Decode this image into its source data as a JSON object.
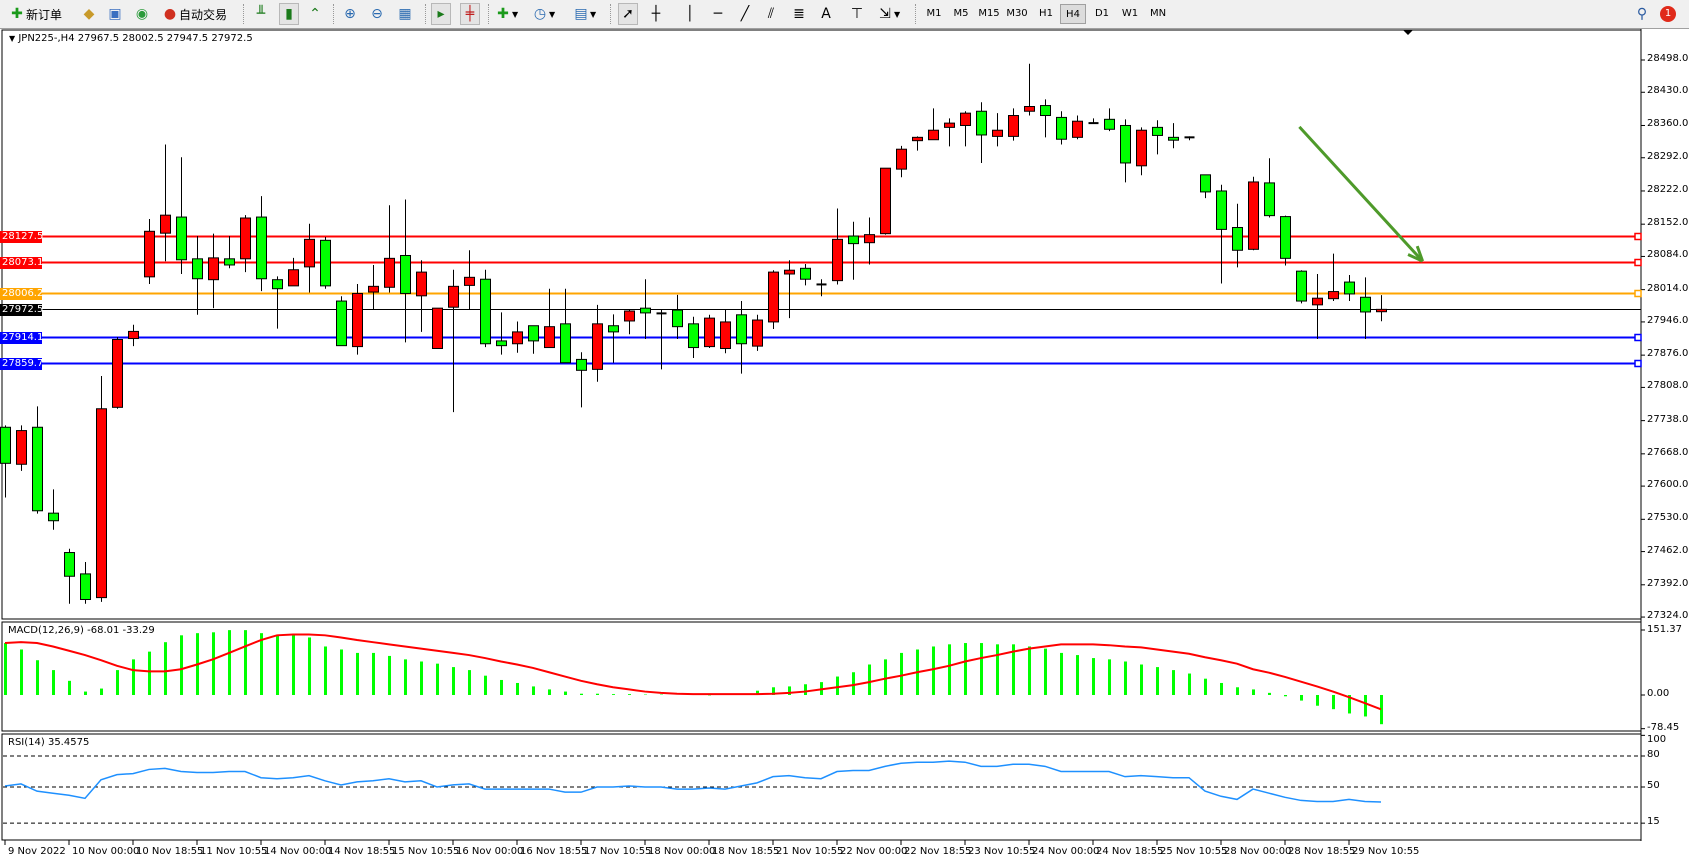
{
  "toolbar": {
    "new_order_label": "新订单",
    "auto_trade_label": "自动交易",
    "timeframes": [
      "M1",
      "M5",
      "M15",
      "M30",
      "H1",
      "H4",
      "D1",
      "W1",
      "MN"
    ],
    "active_timeframe": "H4",
    "notification_count": "1"
  },
  "chart": {
    "header": "JPN225-,H4  27967.5 28002.5 27947.5 27972.5",
    "symbol": "JPN225-",
    "timeframe": "H4",
    "price_axis": [
      "28498.0",
      "28430.0",
      "28360.0",
      "28292.0",
      "28222.0",
      "28152.0",
      "28084.0",
      "28014.0",
      "27946.0",
      "27876.0",
      "27808.0",
      "27738.0",
      "27668.0",
      "27600.0",
      "27530.0",
      "27462.0",
      "27392.0",
      "27324.0"
    ],
    "time_axis": [
      "9 Nov 2022",
      "10 Nov 00:00",
      "10 Nov 18:55",
      "11 Nov 10:55",
      "14 Nov 00:00",
      "14 Nov 18:55",
      "15 Nov 10:55",
      "16 Nov 00:00",
      "16 Nov 18:55",
      "17 Nov 10:55",
      "18 Nov 00:00",
      "18 Nov 18:55",
      "21 Nov 10:55",
      "22 Nov 00:00",
      "22 Nov 18:55",
      "23 Nov 10:55",
      "24 Nov 00:00",
      "24 Nov 18:55",
      "25 Nov 10:55",
      "28 Nov 00:00",
      "28 Nov 18:55",
      "29 Nov 10:55"
    ],
    "levels": [
      {
        "price": 28127.5,
        "label": "28127.5",
        "color": "#ff0000"
      },
      {
        "price": 28073.1,
        "label": "28073.1",
        "color": "#ff0000"
      },
      {
        "price": 28006.2,
        "label": "28006.2",
        "color": "#ffa500"
      },
      {
        "price": 27972.5,
        "label": "27972.5",
        "color": "#000000"
      },
      {
        "price": 27914.1,
        "label": "27914.1",
        "color": "#0000ff"
      },
      {
        "price": 27859.7,
        "label": "27859.7",
        "color": "#0000ff"
      }
    ],
    "colors": {
      "bull": "#ff0000",
      "bear": "#00ff00",
      "arrow": "#4e9a2a"
    },
    "arrow": {
      "from": {
        "bar": 80.9,
        "price": 28357
      },
      "to": {
        "bar": 88.6,
        "price": 28074
      }
    },
    "price_range": [
      27324,
      28498
    ]
  },
  "chart_data": {
    "type": "candlestick",
    "ohlc": [
      [
        27724,
        27728,
        27576,
        27648
      ],
      [
        27646,
        27728,
        27632,
        27717
      ],
      [
        27724,
        27768,
        27542,
        27548
      ],
      [
        27543,
        27593,
        27508,
        27527
      ],
      [
        27460,
        27468,
        27352,
        27410
      ],
      [
        27415,
        27440,
        27352,
        27361
      ],
      [
        27365,
        27832,
        27356,
        27763
      ],
      [
        27766,
        27914,
        27763,
        27909
      ],
      [
        27911,
        27940,
        27895,
        27926
      ],
      [
        28041,
        28163,
        28026,
        28137
      ],
      [
        28133,
        28320,
        28074,
        28171
      ],
      [
        28167,
        28293,
        28047,
        28077
      ],
      [
        28079,
        28127,
        27961,
        28037
      ],
      [
        28035,
        28132,
        27975,
        28081
      ],
      [
        28079,
        28127,
        28059,
        28066
      ],
      [
        28079,
        28171,
        28051,
        28165
      ],
      [
        28167,
        28211,
        28011,
        28037
      ],
      [
        28035,
        28042,
        27932,
        28016
      ],
      [
        28022,
        28081,
        28022,
        28056
      ],
      [
        28062,
        28153,
        28008,
        28120
      ],
      [
        28118,
        28125,
        28016,
        28022
      ],
      [
        27990,
        28000,
        27896,
        27896
      ],
      [
        27894,
        28026,
        27877,
        28006
      ],
      [
        28009,
        28066,
        27971,
        28021
      ],
      [
        28019,
        28192,
        28008,
        28080
      ],
      [
        28086,
        28204,
        27903,
        28006
      ],
      [
        28001,
        28076,
        27925,
        28051
      ],
      [
        27890,
        27975,
        27890,
        27975
      ],
      [
        27977,
        28056,
        27756,
        28021
      ],
      [
        28023,
        28097,
        27971,
        28040
      ],
      [
        28036,
        28056,
        27893,
        27900
      ],
      [
        27906,
        27966,
        27877,
        27896
      ],
      [
        27900,
        27947,
        27881,
        27925
      ],
      [
        27938,
        27938,
        27879,
        27906
      ],
      [
        27892,
        28016,
        27892,
        27936
      ],
      [
        27942,
        28016,
        27860,
        27860
      ],
      [
        27867,
        27882,
        27766,
        27844
      ],
      [
        27846,
        27982,
        27820,
        27942
      ],
      [
        27938,
        27962,
        27860,
        27925
      ],
      [
        27948,
        27971,
        27920,
        27969
      ],
      [
        27975,
        28036,
        27910,
        27965
      ],
      [
        27964,
        27971,
        27846,
        27963
      ],
      [
        27971,
        28003,
        27910,
        27936
      ],
      [
        27942,
        27957,
        27870,
        27892
      ],
      [
        27894,
        27961,
        27891,
        27954
      ],
      [
        27890,
        27971,
        27880,
        27946
      ],
      [
        27961,
        27990,
        27837,
        27900
      ],
      [
        27895,
        27961,
        27885,
        27950
      ],
      [
        27946,
        28055,
        27931,
        28051
      ],
      [
        28047,
        28076,
        27954,
        28055
      ],
      [
        28059,
        28068,
        28023,
        28036
      ],
      [
        28025,
        28036,
        28000,
        28024
      ],
      [
        28033,
        28185,
        28025,
        28120
      ],
      [
        28127,
        28157,
        28035,
        28111
      ],
      [
        28113,
        28166,
        28067,
        28130
      ],
      [
        28132,
        28270,
        28130,
        28270
      ],
      [
        28268,
        28317,
        28251,
        28310
      ],
      [
        28328,
        28337,
        28307,
        28335
      ],
      [
        28330,
        28396,
        28330,
        28350
      ],
      [
        28356,
        28375,
        28316,
        28365
      ],
      [
        28360,
        28390,
        28316,
        28386
      ],
      [
        28390,
        28409,
        28281,
        28340
      ],
      [
        28337,
        28386,
        28316,
        28350
      ],
      [
        28337,
        28396,
        28328,
        28381
      ],
      [
        28390,
        28490,
        28381,
        28400
      ],
      [
        28402,
        28415,
        28335,
        28381
      ],
      [
        28377,
        28390,
        28320,
        28331
      ],
      [
        28335,
        28381,
        28331,
        28369
      ],
      [
        28365,
        28375,
        28365,
        28365
      ],
      [
        28373,
        28396,
        28348,
        28352
      ],
      [
        28360,
        28373,
        28240,
        28281
      ],
      [
        28275,
        28356,
        28255,
        28350
      ],
      [
        28356,
        28371,
        28299,
        28339
      ],
      [
        28335,
        28365,
        28312,
        28329
      ],
      [
        28331,
        28337,
        28329,
        28335
      ],
      [
        28256,
        28256,
        28207,
        28220
      ],
      [
        28222,
        28235,
        28027,
        28141
      ],
      [
        28145,
        28195,
        28061,
        28097
      ],
      [
        28099,
        28252,
        28097,
        28241
      ],
      [
        28239,
        28291,
        28166,
        28170
      ],
      [
        28168,
        28170,
        28065,
        28080
      ],
      [
        28053,
        28055,
        27985,
        27990
      ],
      [
        27982,
        28047,
        27910,
        27996
      ],
      [
        27995,
        28090,
        27990,
        28010
      ],
      [
        28030,
        28045,
        27990,
        28005
      ],
      [
        27998,
        28040,
        27910,
        27967
      ],
      [
        27967.5,
        28002.5,
        27947.5,
        27972.5
      ]
    ],
    "macd": {
      "label": "MACD(12,26,9) -68.01 -33.29",
      "axis": [
        "151.37",
        "0.00",
        "-78.45"
      ],
      "range": [
        -78.45,
        151.37
      ],
      "histogram": [
        121,
        106,
        81,
        58,
        33,
        8,
        15,
        58,
        83,
        101,
        123,
        139,
        144,
        146,
        151,
        151,
        144,
        139,
        139,
        134,
        113,
        106,
        98,
        98,
        91,
        83,
        78,
        73,
        65,
        58,
        45,
        35,
        28,
        20,
        13,
        8,
        3,
        3,
        2,
        2,
        1,
        1,
        0,
        0,
        -1,
        0,
        3,
        10,
        18,
        20,
        25,
        30,
        43,
        53,
        71,
        83,
        98,
        106,
        113,
        118,
        121,
        121,
        118,
        118,
        113,
        108,
        98,
        93,
        86,
        83,
        78,
        71,
        65,
        58,
        50,
        38,
        28,
        18,
        13,
        5,
        -3,
        -13,
        -25,
        -33,
        -43,
        -50,
        -68.01
      ],
      "signal": [
        121,
        123,
        121,
        113,
        103,
        93,
        81,
        68,
        58,
        55,
        55,
        60,
        71,
        83,
        98,
        113,
        128,
        139,
        141,
        141,
        139,
        134,
        128,
        123,
        118,
        113,
        108,
        103,
        98,
        93,
        86,
        78,
        71,
        63,
        53,
        43,
        33,
        25,
        18,
        13,
        8,
        5,
        3,
        2,
        2,
        2,
        2,
        2,
        3,
        5,
        8,
        13,
        18,
        23,
        30,
        38,
        45,
        53,
        60,
        68,
        78,
        86,
        93,
        101,
        108,
        113,
        118,
        118,
        118,
        116,
        113,
        111,
        106,
        101,
        96,
        88,
        81,
        73,
        60,
        52,
        42,
        31,
        20,
        8,
        -5,
        -19,
        -33.29
      ]
    },
    "rsi": {
      "label": "RSI(14) 35.4575",
      "axis": [
        "100",
        "80",
        "50",
        "15"
      ],
      "levels": [
        80,
        50,
        15
      ],
      "values": [
        51,
        53,
        46,
        44,
        42,
        39,
        57,
        62,
        63,
        67,
        68,
        65,
        64,
        64,
        65,
        65,
        59,
        58,
        59,
        61,
        56,
        52,
        55,
        56,
        58,
        55,
        56,
        50,
        52,
        53,
        48,
        48,
        48,
        48,
        48,
        45,
        45,
        50,
        50,
        51,
        50,
        50,
        48,
        48,
        49,
        48,
        51,
        54,
        60,
        61,
        59,
        58,
        65,
        66,
        66,
        70,
        73,
        74,
        74,
        75,
        74,
        70,
        70,
        72,
        72,
        70,
        65,
        65,
        65,
        65,
        60,
        61,
        60,
        59,
        59,
        46,
        41,
        38,
        48,
        44,
        40,
        37,
        36,
        36,
        38,
        36,
        35.46
      ]
    }
  }
}
